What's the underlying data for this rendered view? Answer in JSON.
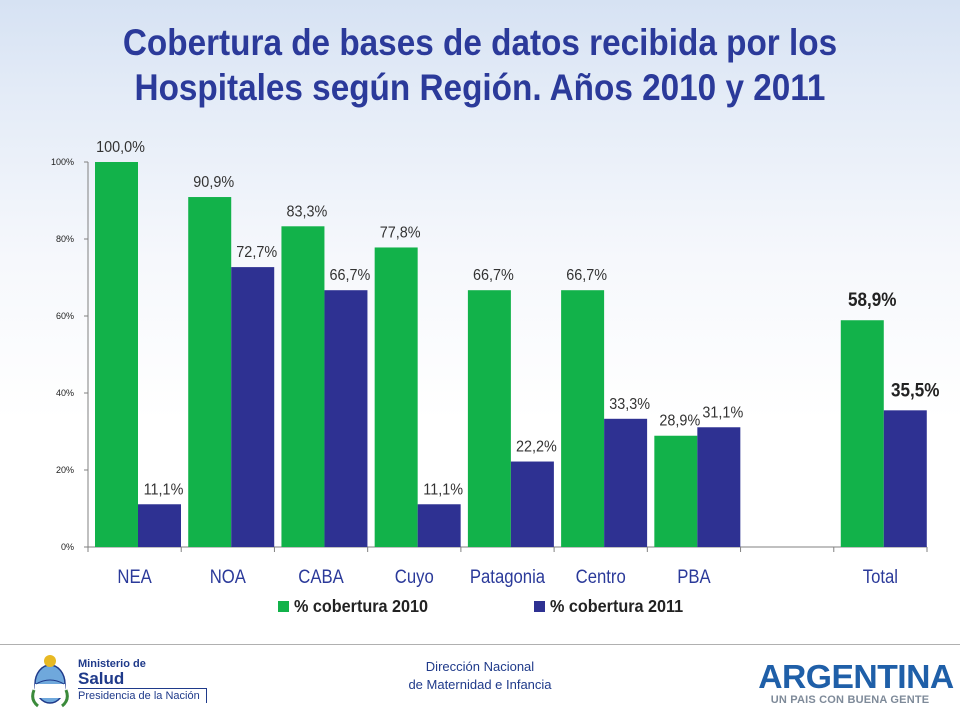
{
  "chart_data": {
    "type": "bar",
    "title": "Cobertura de bases de datos recibida por los Hospitales según Región. Años 2010 y 2011",
    "categories": [
      "NEA",
      "NOA",
      "CABA",
      "Cuyo",
      "Patagonia",
      "Centro",
      "PBA",
      "",
      "Total"
    ],
    "series": [
      {
        "name": "% cobertura 2010",
        "color": "#12b24a",
        "values": [
          100.0,
          90.9,
          83.3,
          77.8,
          66.7,
          66.7,
          28.9,
          null,
          58.9
        ],
        "labels": [
          "100,0%",
          "90,9%",
          "83,3%",
          "77,8%",
          "66,7%",
          "66,7%",
          "28,9%",
          "",
          "58,9%"
        ]
      },
      {
        "name": "% cobertura 2011",
        "color": "#2e3192",
        "values": [
          11.1,
          72.7,
          66.7,
          11.1,
          22.2,
          33.3,
          31.1,
          null,
          35.5
        ],
        "labels": [
          "11,1%",
          "72,7%",
          "66,7%",
          "11,1%",
          "22,2%",
          "33,3%",
          "31,1%",
          "",
          "35,5%"
        ]
      }
    ],
    "yticks": [
      "0%",
      "20%",
      "40%",
      "60%",
      "80%",
      "100%"
    ],
    "ylim": [
      0,
      100
    ],
    "grid": false,
    "legend": "bottom"
  },
  "footer": {
    "center_line1": "Dirección Nacional",
    "center_line2": "de Maternidad e Infancia",
    "ministry_line1": "Ministerio de",
    "ministry_line2": "Salud",
    "ministry_line3": "Presidencia de la Nación",
    "brand": "ARGENTINA",
    "brand_slogan": "UN PAIS CON BUENA GENTE"
  }
}
